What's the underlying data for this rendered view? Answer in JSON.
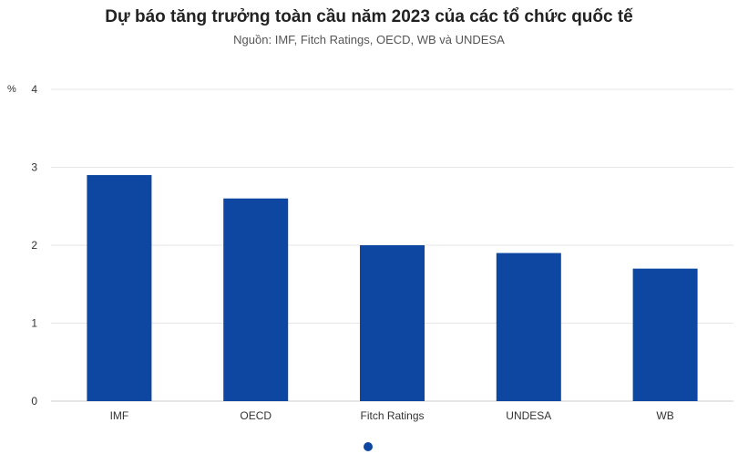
{
  "chart_data": {
    "type": "bar",
    "title": "Dự báo tăng trưởng toàn cầu năm 2023 của các tổ chức quốc tế",
    "subtitle": "Nguồn: IMF, Fitch Ratings, OECD, WB và UNDESA",
    "ylabel": "%",
    "xlabel": "",
    "categories": [
      "IMF",
      "OECD",
      "Fitch Ratings",
      "UNDESA",
      "WB"
    ],
    "values": [
      2.9,
      2.6,
      2.0,
      1.9,
      1.7
    ],
    "ylim": [
      0,
      4
    ],
    "yticks": [
      "0",
      "1",
      "2",
      "3",
      "4"
    ],
    "grid": true,
    "legend": "none",
    "bar_color": "#0d47a1"
  }
}
